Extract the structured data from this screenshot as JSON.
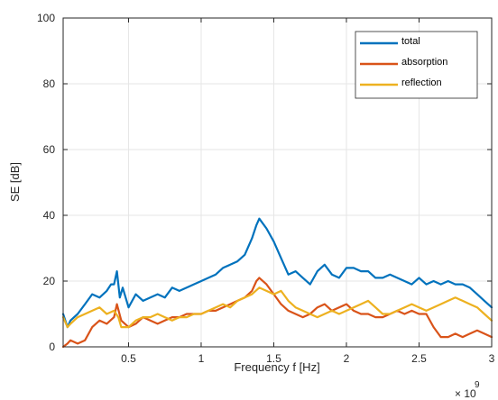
{
  "chart_data": {
    "type": "line",
    "title": "",
    "xlabel": "Frequency f [Hz]",
    "ylabel": "SE [dB]",
    "x_multiplier_label": "× 10",
    "x_multiplier_exponent": "9",
    "xlim": [
      0.05,
      3.0
    ],
    "ylim": [
      0,
      100
    ],
    "xticks": [
      0.5,
      1,
      1.5,
      2,
      2.5,
      3
    ],
    "xtick_labels": [
      "0.5",
      "1",
      "1.5",
      "2",
      "2.5",
      "3"
    ],
    "yticks": [
      0,
      20,
      40,
      60,
      80,
      100
    ],
    "ytick_labels": [
      "0",
      "20",
      "40",
      "60",
      "80",
      "100"
    ],
    "grid": true,
    "legend_position": "top-right",
    "series": [
      {
        "name": "total",
        "color": "#0072BD",
        "x": [
          0.05,
          0.08,
          0.1,
          0.15,
          0.2,
          0.25,
          0.3,
          0.35,
          0.38,
          0.4,
          0.42,
          0.44,
          0.46,
          0.5,
          0.55,
          0.6,
          0.65,
          0.7,
          0.75,
          0.8,
          0.85,
          0.9,
          0.95,
          1.0,
          1.05,
          1.1,
          1.15,
          1.2,
          1.25,
          1.3,
          1.35,
          1.38,
          1.4,
          1.45,
          1.5,
          1.55,
          1.6,
          1.65,
          1.7,
          1.75,
          1.8,
          1.85,
          1.9,
          1.95,
          2.0,
          2.05,
          2.1,
          2.15,
          2.2,
          2.25,
          2.3,
          2.35,
          2.4,
          2.45,
          2.5,
          2.55,
          2.6,
          2.65,
          2.7,
          2.75,
          2.8,
          2.85,
          2.9,
          2.95,
          3.0
        ],
        "y": [
          10,
          6,
          8,
          10,
          13,
          16,
          15,
          17,
          19,
          19,
          23,
          15,
          18,
          12,
          16,
          14,
          15,
          16,
          15,
          18,
          17,
          18,
          19,
          20,
          21,
          22,
          24,
          25,
          26,
          28,
          33,
          37,
          39,
          36,
          32,
          27,
          22,
          23,
          21,
          19,
          23,
          25,
          22,
          21,
          24,
          24,
          23,
          23,
          21,
          21,
          22,
          21,
          20,
          19,
          21,
          19,
          20,
          19,
          20,
          19,
          19,
          18,
          16,
          14,
          12
        ]
      },
      {
        "name": "absorption",
        "color": "#D95319",
        "x": [
          0.05,
          0.08,
          0.1,
          0.15,
          0.2,
          0.25,
          0.3,
          0.35,
          0.4,
          0.42,
          0.45,
          0.5,
          0.55,
          0.6,
          0.65,
          0.7,
          0.75,
          0.8,
          0.85,
          0.9,
          0.95,
          1.0,
          1.05,
          1.1,
          1.15,
          1.2,
          1.25,
          1.3,
          1.35,
          1.38,
          1.4,
          1.45,
          1.5,
          1.55,
          1.6,
          1.65,
          1.7,
          1.75,
          1.8,
          1.85,
          1.9,
          1.95,
          2.0,
          2.05,
          2.1,
          2.15,
          2.2,
          2.25,
          2.3,
          2.35,
          2.4,
          2.45,
          2.5,
          2.55,
          2.6,
          2.65,
          2.7,
          2.75,
          2.8,
          2.85,
          2.9,
          2.95,
          3.0
        ],
        "y": [
          0,
          1,
          2,
          1,
          2,
          6,
          8,
          7,
          9,
          13,
          8,
          6,
          7,
          9,
          8,
          7,
          8,
          9,
          9,
          10,
          10,
          10,
          11,
          11,
          12,
          13,
          14,
          15,
          17,
          20,
          21,
          19,
          16,
          13,
          11,
          10,
          9,
          10,
          12,
          13,
          11,
          12,
          13,
          11,
          10,
          10,
          9,
          9,
          10,
          11,
          10,
          11,
          10,
          10,
          6,
          3,
          3,
          4,
          3,
          4,
          5,
          4,
          3
        ]
      },
      {
        "name": "reflection",
        "color": "#EDB120",
        "x": [
          0.05,
          0.08,
          0.1,
          0.15,
          0.2,
          0.25,
          0.3,
          0.35,
          0.4,
          0.43,
          0.45,
          0.5,
          0.55,
          0.6,
          0.65,
          0.7,
          0.75,
          0.8,
          0.85,
          0.9,
          0.95,
          1.0,
          1.05,
          1.1,
          1.15,
          1.2,
          1.25,
          1.3,
          1.35,
          1.4,
          1.45,
          1.5,
          1.55,
          1.6,
          1.65,
          1.7,
          1.75,
          1.8,
          1.85,
          1.9,
          1.95,
          2.0,
          2.05,
          2.1,
          2.15,
          2.2,
          2.25,
          2.3,
          2.35,
          2.4,
          2.45,
          2.5,
          2.55,
          2.6,
          2.65,
          2.7,
          2.75,
          2.8,
          2.85,
          2.9,
          2.95,
          3.0
        ],
        "y": [
          9,
          6,
          7,
          9,
          10,
          11,
          12,
          10,
          11,
          9,
          6,
          6,
          8,
          9,
          9,
          10,
          9,
          8,
          9,
          9,
          10,
          10,
          11,
          12,
          13,
          12,
          14,
          15,
          16,
          18,
          17,
          16,
          17,
          14,
          12,
          11,
          10,
          9,
          10,
          11,
          10,
          11,
          12,
          13,
          14,
          12,
          10,
          10,
          11,
          12,
          13,
          12,
          11,
          12,
          13,
          14,
          15,
          14,
          13,
          12,
          10,
          8
        ]
      }
    ]
  }
}
